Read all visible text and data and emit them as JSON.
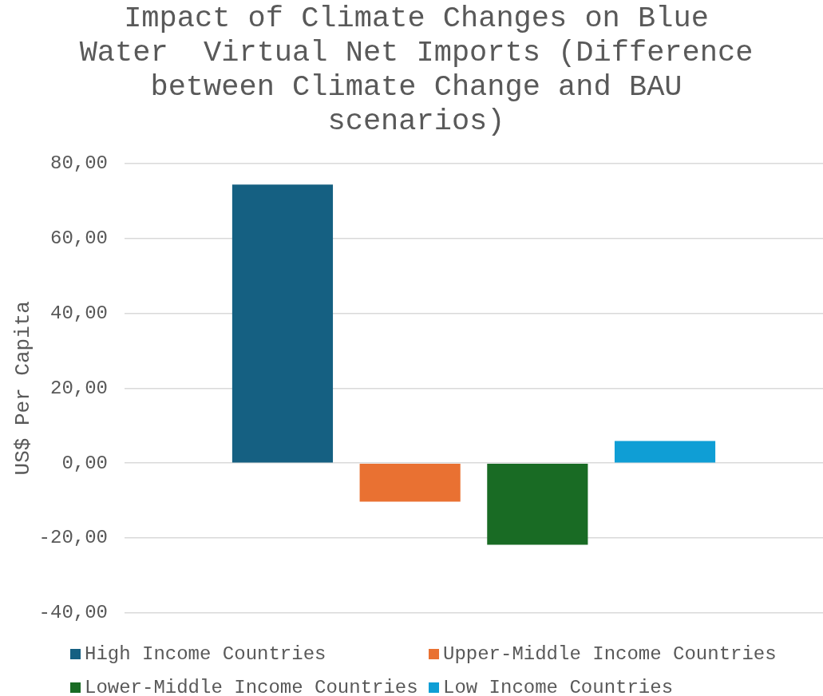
{
  "chart_data": {
    "type": "bar",
    "title": "Impact of Climate Changes on Blue Water  Virtual Net Imports (Difference between Climate Change and BAU scenarios)",
    "ylabel": "US$ Per Capita",
    "categories": [
      null
    ],
    "series": [
      {
        "name": "High Income Countries",
        "color": "#156082",
        "values": [
          74.3
        ]
      },
      {
        "name": "Upper-Middle Income Countries",
        "color": "#e97132",
        "values": [
          -10.3
        ]
      },
      {
        "name": "Lower-Middle Income Countries",
        "color": "#196b24",
        "values": [
          -21.8
        ]
      },
      {
        "name": "Low Income Countries",
        "color": "#0f9ed5",
        "values": [
          5.9
        ]
      }
    ],
    "ylim": [
      -40,
      80
    ],
    "yticks": [
      {
        "value": -40,
        "label": "-40,00"
      },
      {
        "value": -20,
        "label": "-20,00"
      },
      {
        "value": 0,
        "label": "0,00"
      },
      {
        "value": 20,
        "label": "20,00"
      },
      {
        "value": 40,
        "label": "40,00"
      },
      {
        "value": 60,
        "label": "60,00"
      },
      {
        "value": 80,
        "label": "80,00"
      }
    ],
    "grid": "y",
    "legend": "bottom",
    "tick_labels": "y"
  }
}
